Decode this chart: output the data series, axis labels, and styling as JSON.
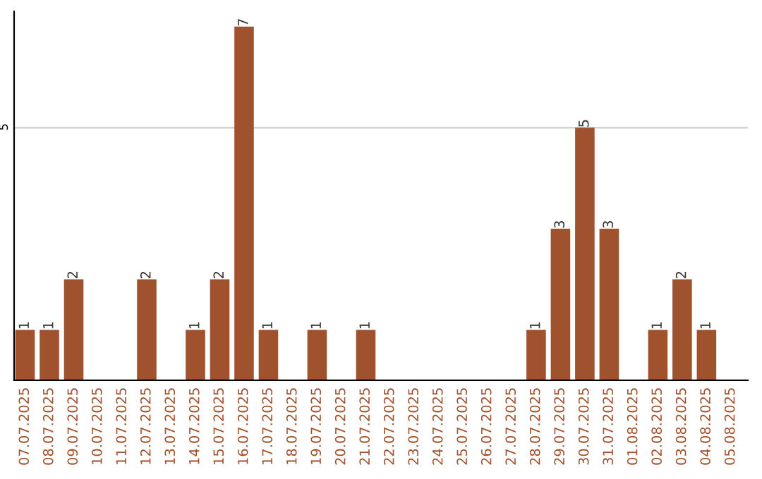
{
  "chart_data": {
    "type": "bar",
    "categories": [
      "07.07.2025",
      "08.07.2025",
      "09.07.2025",
      "10.07.2025",
      "11.07.2025",
      "12.07.2025",
      "13.07.2025",
      "14.07.2025",
      "15.07.2025",
      "16.07.2025",
      "17.07.2025",
      "18.07.2025",
      "19.07.2025",
      "20.07.2025",
      "21.07.2025",
      "22.07.2025",
      "23.07.2025",
      "24.07.2025",
      "25.07.2025",
      "26.07.2025",
      "27.07.2025",
      "28.07.2025",
      "29.07.2025",
      "30.07.2025",
      "31.07.2025",
      "01.08.2025",
      "02.08.2025",
      "03.08.2025",
      "04.08.2025",
      "05.08.2025"
    ],
    "values": [
      1,
      1,
      2,
      0,
      0,
      2,
      0,
      1,
      2,
      7,
      1,
      0,
      1,
      0,
      1,
      0,
      0,
      0,
      0,
      0,
      0,
      1,
      3,
      5,
      3,
      0,
      1,
      2,
      1,
      0
    ],
    "value_labels": [
      "1",
      "1",
      "2",
      null,
      null,
      "2",
      null,
      "1",
      "2",
      "7",
      "1",
      null,
      "1",
      null,
      "1",
      null,
      null,
      null,
      null,
      null,
      null,
      "1",
      "3",
      "5",
      "3",
      null,
      "1",
      "2",
      "1",
      null
    ],
    "color": "#a0522d",
    "ylim": [
      0,
      7.3
    ],
    "yticks": [
      5
    ],
    "grid": "y"
  }
}
